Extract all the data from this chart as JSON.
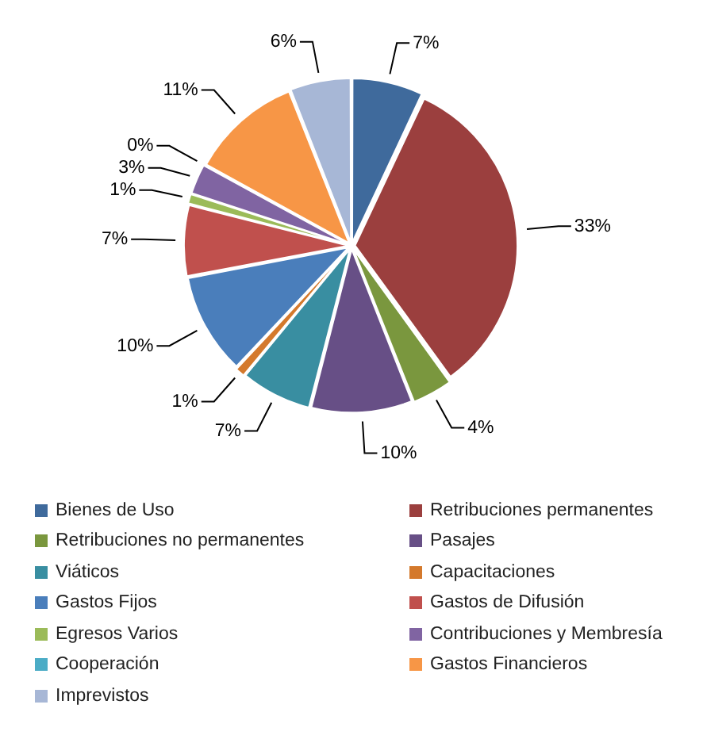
{
  "chart_data": {
    "type": "pie",
    "categories": [
      "Bienes de Uso",
      "Retribuciones permanentes",
      "Retribuciones no permanentes",
      "Pasajes",
      "Viáticos",
      "Capacitaciones",
      "Gastos Fijos",
      "Gastos de Difusión",
      "Egresos Varios",
      "Contribuciones y Membresía",
      "Cooperación",
      "Gastos Financieros",
      "Imprevistos"
    ],
    "values": [
      7,
      33,
      4,
      10,
      7,
      1,
      10,
      7,
      1,
      3,
      0,
      11,
      6
    ],
    "colors": [
      "#3f6a9c",
      "#9b3f3e",
      "#7a973e",
      "#674f86",
      "#398ea1",
      "#d4792c",
      "#4a7ebb",
      "#c0504d",
      "#9bbb59",
      "#8064a2",
      "#4bacc6",
      "#f79646",
      "#a7b7d6"
    ],
    "value_labels": [
      "7%",
      "33%",
      "4%",
      "10%",
      "7%",
      "1%",
      "10%",
      "7%",
      "1%",
      "3%",
      "0%",
      "11%",
      "6%"
    ],
    "legend": "bottom"
  }
}
